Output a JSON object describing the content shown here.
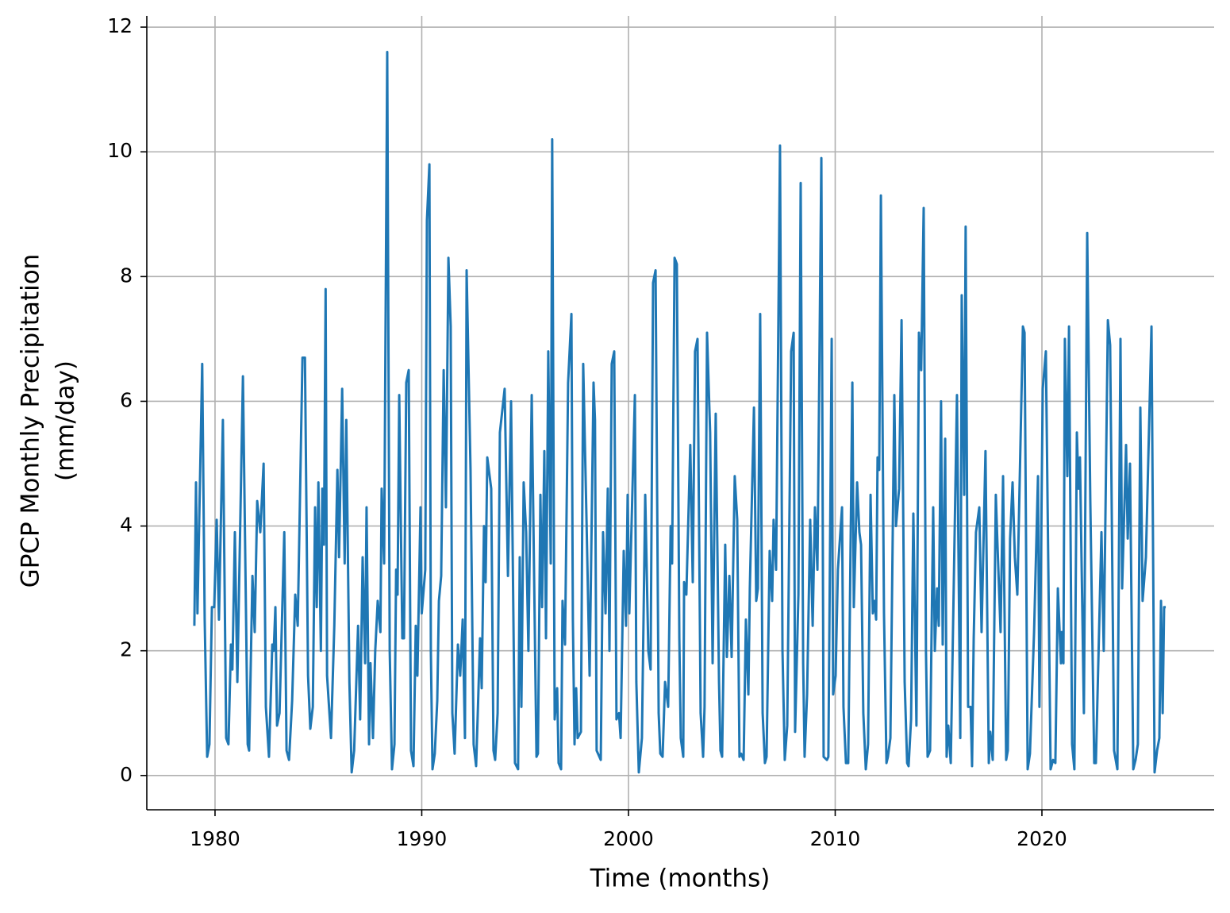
{
  "chart_data": {
    "type": "line",
    "xlabel": "Time (months)",
    "ylabel": [
      "GPCP Monthly Precipitation",
      "(mm/day)"
    ],
    "color": "#1f77b4",
    "grid": true,
    "xlim": [
      1976.7,
      2028.33
    ],
    "ylim": [
      -0.55,
      12.18
    ],
    "xticks": [
      1980,
      1990,
      2000,
      2010,
      2020
    ],
    "yticks": [
      0,
      2,
      4,
      6,
      8,
      10,
      12
    ],
    "x": [
      1979.0,
      1979.08,
      1979.15,
      1979.38,
      1979.5,
      1979.62,
      1979.73,
      1979.85,
      1979.96,
      1980.08,
      1980.19,
      1980.38,
      1980.54,
      1980.65,
      1980.77,
      1980.84,
      1980.96,
      1981.08,
      1981.35,
      1981.58,
      1981.65,
      1981.81,
      1981.92,
      1982.04,
      1982.19,
      1982.35,
      1982.46,
      1982.61,
      1982.77,
      1982.84,
      1982.92,
      1983.0,
      1983.12,
      1983.35,
      1983.46,
      1983.58,
      1983.73,
      1983.88,
      1984.0,
      1984.23,
      1984.35,
      1984.5,
      1984.61,
      1984.73,
      1984.84,
      1984.92,
      1985.0,
      1985.12,
      1985.19,
      1985.27,
      1985.35,
      1985.42,
      1985.61,
      1985.77,
      1985.92,
      1986.0,
      1986.15,
      1986.27,
      1986.35,
      1986.5,
      1986.61,
      1986.73,
      1986.92,
      1987.02,
      1987.14,
      1987.26,
      1987.33,
      1987.45,
      1987.52,
      1987.64,
      1987.75,
      1987.87,
      1988.0,
      1988.06,
      1988.18,
      1988.33,
      1988.45,
      1988.56,
      1988.68,
      1988.76,
      1988.83,
      1988.91,
      1989.06,
      1989.14,
      1989.25,
      1989.37,
      1989.48,
      1989.6,
      1989.71,
      1989.79,
      1989.94,
      1990.0,
      1990.17,
      1990.25,
      1990.37,
      1990.44,
      1990.52,
      1990.63,
      1990.75,
      1990.83,
      1990.94,
      1991.06,
      1991.17,
      1991.29,
      1991.4,
      1991.48,
      1991.59,
      1991.75,
      1991.86,
      1991.98,
      1992.09,
      1992.17,
      1992.36,
      1992.51,
      1992.63,
      1992.71,
      1992.82,
      1992.9,
      1993.01,
      1993.09,
      1993.17,
      1993.36,
      1993.47,
      1993.55,
      1993.67,
      1993.78,
      1994.01,
      1994.17,
      1994.32,
      1994.51,
      1994.66,
      1994.74,
      1994.82,
      1994.93,
      1995.05,
      1995.16,
      1995.32,
      1995.55,
      1995.62,
      1995.74,
      1995.82,
      1995.93,
      1996.01,
      1996.12,
      1996.24,
      1996.31,
      1996.43,
      1996.55,
      1996.62,
      1996.74,
      1996.81,
      1996.93,
      1997.08,
      1997.24,
      1997.31,
      1997.39,
      1997.47,
      1997.54,
      1997.7,
      1997.81,
      1997.97,
      1998.12,
      1998.31,
      1998.38,
      1998.46,
      1998.66,
      1998.77,
      1998.89,
      1999.0,
      1999.08,
      1999.19,
      1999.31,
      1999.42,
      1999.54,
      1999.62,
      1999.77,
      1999.88,
      1999.96,
      2000.04,
      2000.31,
      2000.38,
      2000.5,
      2000.65,
      2000.81,
      2000.96,
      2001.07,
      2001.19,
      2001.31,
      2001.46,
      2001.54,
      2001.65,
      2001.77,
      2001.92,
      2002.04,
      2002.11,
      2002.23,
      2002.34,
      2002.46,
      2002.53,
      2002.65,
      2002.69,
      2002.8,
      2002.99,
      2003.11,
      2003.22,
      2003.34,
      2003.49,
      2003.61,
      2003.68,
      2003.8,
      2003.95,
      2004.07,
      2004.22,
      2004.38,
      2004.45,
      2004.53,
      2004.68,
      2004.76,
      2004.88,
      2004.99,
      2005.14,
      2005.26,
      2005.37,
      2005.45,
      2005.57,
      2005.68,
      2005.8,
      2005.87,
      2006.07,
      2006.18,
      2006.26,
      2006.37,
      2006.49,
      2006.6,
      2006.68,
      2006.83,
      2006.95,
      2007.02,
      2007.14,
      2007.33,
      2007.45,
      2007.56,
      2007.68,
      2007.87,
      2007.99,
      2008.06,
      2008.22,
      2008.33,
      2008.45,
      2008.52,
      2008.64,
      2008.79,
      2008.91,
      2009.02,
      2009.14,
      2009.33,
      2009.44,
      2009.6,
      2009.67,
      2009.83,
      2009.9,
      2010.02,
      2010.13,
      2010.33,
      2010.4,
      2010.52,
      2010.63,
      2010.83,
      2010.9,
      2011.06,
      2011.17,
      2011.25,
      2011.36,
      2011.48,
      2011.59,
      2011.71,
      2011.82,
      2011.9,
      2011.98,
      2012.05,
      2012.13,
      2012.21,
      2012.36,
      2012.48,
      2012.55,
      2012.67,
      2012.86,
      2012.94,
      2013.09,
      2013.21,
      2013.36,
      2013.48,
      2013.55,
      2013.67,
      2013.78,
      2013.93,
      2014.05,
      2014.16,
      2014.28,
      2014.39,
      2014.47,
      2014.59,
      2014.74,
      2014.82,
      2014.93,
      2015.01,
      2015.12,
      2015.2,
      2015.32,
      2015.39,
      2015.47,
      2015.59,
      2015.89,
      2016.05,
      2016.12,
      2016.24,
      2016.31,
      2016.43,
      2016.55,
      2016.62,
      2016.7,
      2016.81,
      2016.97,
      2017.08,
      2017.27,
      2017.43,
      2017.5,
      2017.62,
      2017.77,
      2017.85,
      2018.0,
      2018.12,
      2018.27,
      2018.35,
      2018.46,
      2018.58,
      2018.69,
      2018.81,
      2019.08,
      2019.16,
      2019.31,
      2019.42,
      2019.62,
      2019.81,
      2019.88,
      2020.04,
      2020.19,
      2020.42,
      2020.54,
      2020.65,
      2020.77,
      2020.92,
      2020.96,
      2021.04,
      2021.11,
      2021.23,
      2021.31,
      2021.46,
      2021.57,
      2021.69,
      2021.77,
      2021.84,
      2022.03,
      2022.19,
      2022.34,
      2022.53,
      2022.61,
      2022.88,
      2022.99,
      2023.19,
      2023.3,
      2023.49,
      2023.65,
      2023.8,
      2023.88,
      2024.07,
      2024.15,
      2024.26,
      2024.42,
      2024.53,
      2024.64,
      2024.76,
      2024.87,
      2025.03,
      2025.14,
      2025.3,
      2025.41,
      2025.45,
      2025.57,
      2025.68,
      2025.76,
      2025.84,
      2025.91,
      2025.99
    ],
    "values": [
      2.4,
      4.7,
      2.6,
      6.6,
      2.5,
      0.3,
      0.5,
      2.7,
      2.7,
      4.1,
      2.5,
      5.7,
      0.6,
      0.5,
      2.1,
      1.7,
      3.9,
      1.5,
      6.4,
      0.5,
      0.4,
      3.2,
      2.3,
      4.4,
      3.9,
      5.0,
      1.1,
      0.3,
      2.1,
      2.0,
      2.7,
      0.8,
      1.0,
      3.9,
      0.4,
      0.25,
      1.2,
      2.9,
      2.4,
      6.7,
      6.7,
      1.6,
      0.75,
      1.1,
      4.3,
      2.7,
      4.7,
      2.0,
      4.6,
      3.7,
      7.8,
      1.6,
      0.6,
      2.4,
      4.9,
      3.5,
      6.2,
      3.4,
      5.7,
      1.5,
      0.05,
      0.4,
      2.4,
      0.9,
      3.5,
      1.8,
      4.3,
      0.5,
      1.8,
      0.6,
      2.0,
      2.8,
      2.3,
      4.6,
      3.4,
      11.6,
      2.0,
      0.1,
      0.5,
      3.3,
      2.9,
      6.1,
      2.2,
      2.2,
      6.3,
      6.5,
      0.4,
      0.15,
      2.4,
      1.6,
      4.3,
      2.6,
      3.3,
      8.9,
      9.8,
      2.0,
      0.1,
      0.35,
      1.2,
      2.8,
      3.2,
      6.5,
      4.3,
      8.3,
      7.2,
      1.0,
      0.35,
      2.1,
      1.6,
      2.5,
      0.6,
      8.1,
      4.9,
      0.5,
      0.15,
      1.0,
      2.2,
      1.4,
      4.0,
      3.1,
      5.1,
      4.6,
      0.4,
      0.25,
      1.0,
      5.5,
      6.2,
      3.2,
      6.0,
      0.2,
      0.1,
      3.5,
      1.1,
      4.7,
      3.9,
      2.0,
      6.1,
      0.3,
      0.35,
      4.5,
      2.7,
      5.2,
      2.2,
      6.8,
      3.4,
      10.2,
      0.9,
      1.4,
      0.2,
      0.1,
      2.8,
      2.1,
      6.3,
      7.4,
      2.5,
      0.5,
      1.4,
      0.6,
      0.7,
      6.6,
      4.1,
      1.6,
      6.3,
      5.7,
      0.4,
      0.25,
      3.9,
      2.6,
      4.6,
      2.0,
      6.6,
      6.8,
      0.9,
      1.0,
      0.6,
      3.6,
      2.4,
      4.5,
      2.6,
      6.1,
      1.5,
      0.05,
      0.6,
      4.5,
      2.0,
      1.7,
      7.9,
      8.1,
      1.0,
      0.35,
      0.3,
      1.5,
      1.1,
      4.0,
      3.4,
      8.3,
      8.2,
      2.2,
      0.6,
      0.3,
      3.1,
      2.9,
      5.3,
      3.1,
      6.8,
      7.0,
      1.0,
      0.3,
      1.1,
      7.1,
      5.5,
      1.8,
      5.8,
      1.5,
      0.4,
      0.3,
      3.7,
      1.9,
      3.2,
      1.9,
      4.8,
      4.1,
      0.3,
      0.35,
      0.25,
      2.5,
      1.3,
      3.0,
      5.9,
      2.8,
      3.0,
      7.4,
      1.0,
      0.2,
      0.3,
      3.6,
      2.8,
      4.1,
      3.3,
      10.1,
      2.0,
      0.25,
      0.8,
      6.8,
      7.1,
      0.7,
      2.9,
      9.5,
      1.8,
      0.3,
      1.3,
      4.1,
      2.4,
      4.3,
      3.3,
      9.9,
      0.3,
      0.25,
      0.3,
      7.0,
      1.3,
      1.6,
      3.3,
      4.3,
      1.1,
      0.2,
      0.2,
      6.3,
      2.7,
      4.7,
      3.9,
      3.7,
      1.0,
      0.1,
      0.5,
      4.5,
      2.6,
      2.8,
      2.5,
      5.1,
      4.9,
      9.3,
      2.6,
      0.2,
      0.3,
      0.6,
      6.1,
      4.0,
      4.6,
      7.3,
      1.5,
      0.2,
      0.15,
      0.9,
      4.2,
      0.8,
      7.1,
      6.5,
      9.1,
      2.0,
      0.3,
      0.4,
      4.3,
      2.0,
      3.0,
      2.4,
      6.0,
      2.1,
      5.4,
      0.3,
      0.8,
      0.2,
      6.1,
      0.6,
      7.7,
      4.5,
      8.8,
      1.1,
      1.1,
      0.15,
      2.2,
      3.9,
      4.3,
      2.3,
      5.2,
      0.2,
      0.7,
      0.25,
      4.5,
      3.7,
      2.3,
      4.8,
      0.25,
      0.4,
      3.8,
      4.7,
      3.5,
      2.9,
      7.2,
      7.1,
      0.1,
      0.35,
      2.3,
      4.8,
      1.1,
      6.2,
      6.8,
      0.1,
      0.25,
      0.2,
      3.0,
      1.8,
      2.3,
      1.8,
      7.0,
      4.8,
      7.2,
      0.5,
      0.1,
      5.5,
      4.6,
      5.1,
      1.0,
      8.7,
      4.4,
      0.2,
      0.2,
      3.9,
      2.0,
      7.3,
      6.9,
      0.4,
      0.1,
      7.0,
      3.0,
      5.3,
      3.8,
      5.0,
      0.1,
      0.25,
      0.5,
      5.9,
      2.8,
      3.5,
      5.0,
      7.2,
      2.0,
      0.05,
      0.4,
      0.6,
      2.8,
      1.0,
      2.7,
      2.7
    ]
  }
}
